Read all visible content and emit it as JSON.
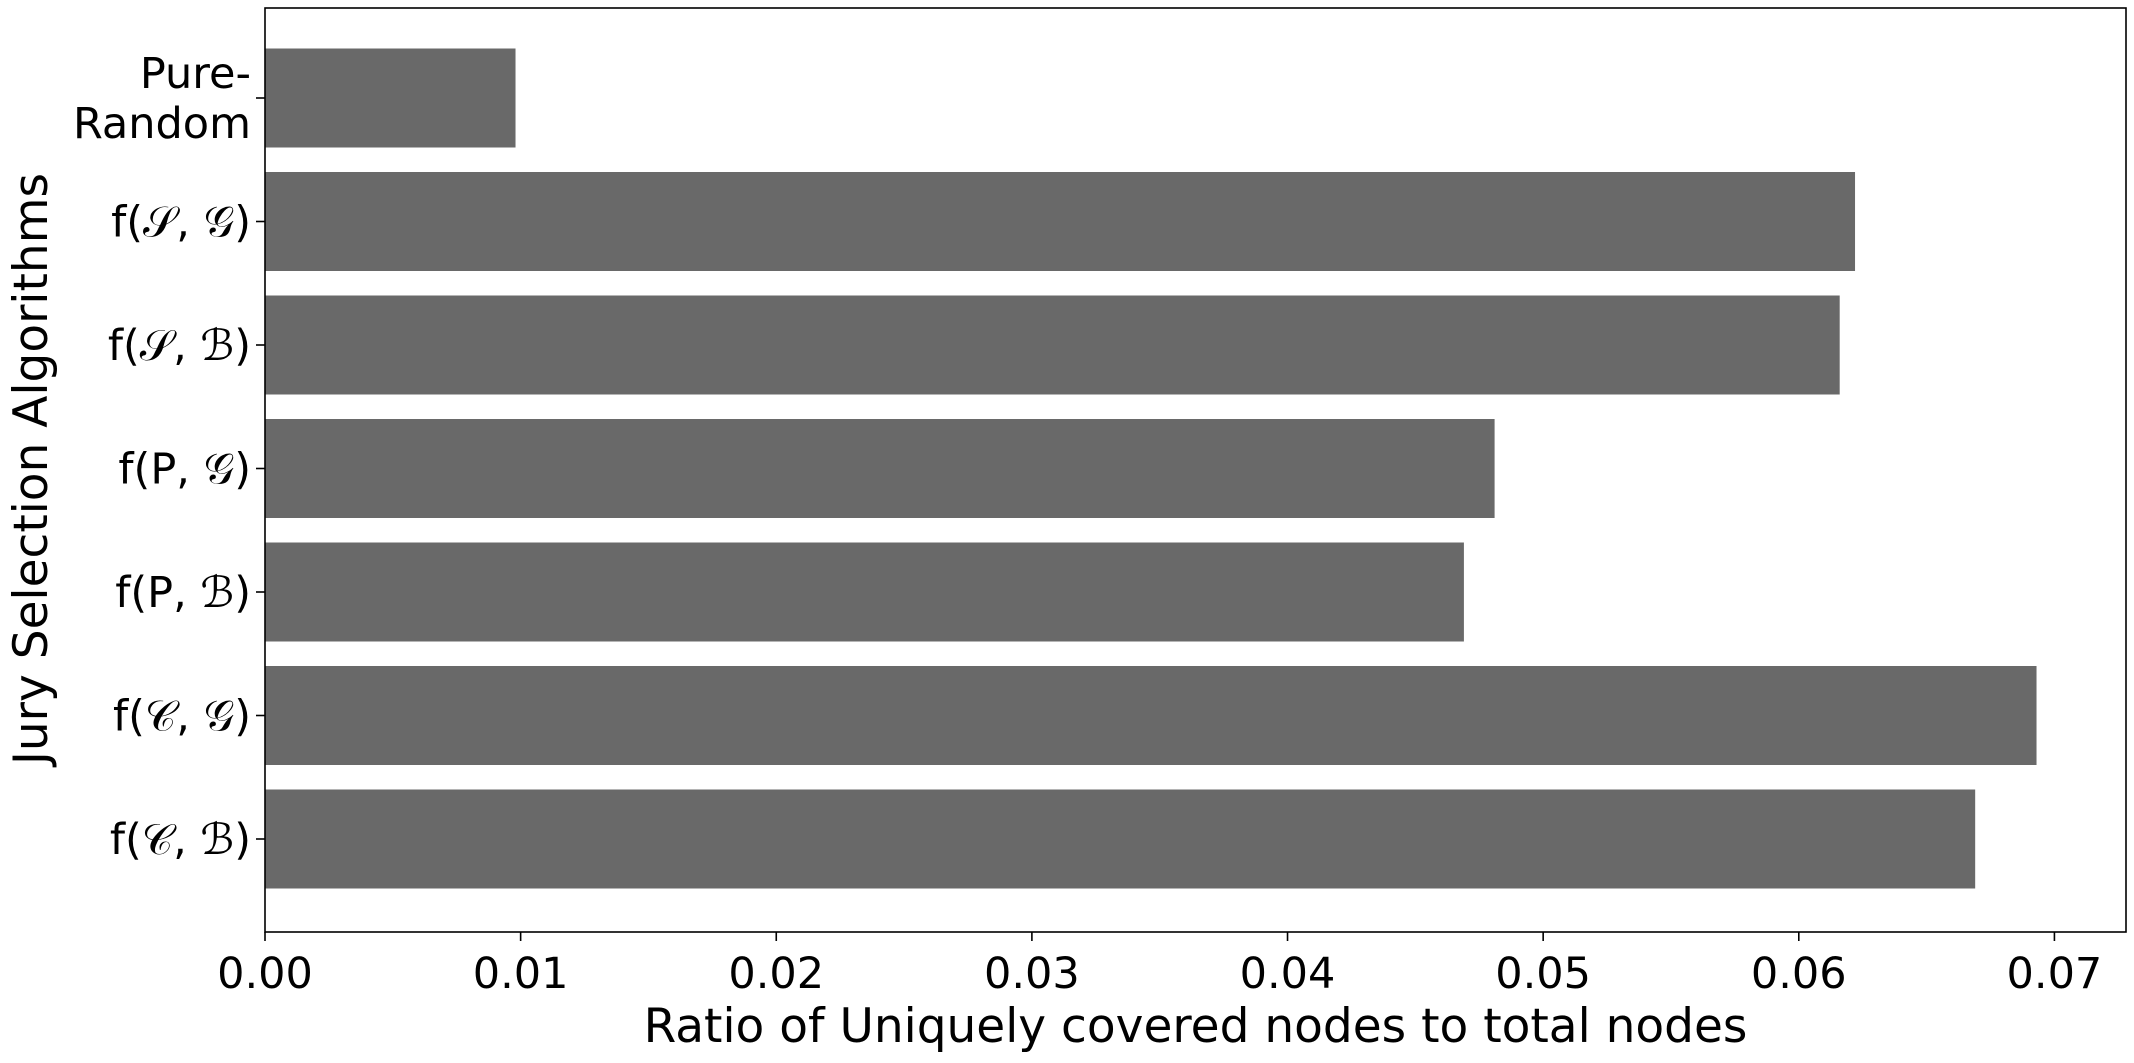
{
  "chart_data": {
    "type": "bar",
    "orientation": "horizontal",
    "title": "",
    "xlabel": "Ratio of Uniquely covered nodes to total nodes",
    "ylabel": "Jury Selection Algorithms",
    "xlim": [
      0,
      0.0728
    ],
    "xticks": [
      "0.00",
      "0.01",
      "0.02",
      "0.03",
      "0.04",
      "0.05",
      "0.06",
      "0.07"
    ],
    "categories": [
      "Pure-Random",
      "f(S, G)",
      "f(S, B)",
      "f(P, G)",
      "f(P, B)",
      "f(C, G)",
      "f(C, B)"
    ],
    "category_label_lines": [
      [
        "Pure-",
        "Random"
      ],
      [
        "f(𝒮, 𝒢)"
      ],
      [
        "f(𝒮, ℬ)"
      ],
      [
        "f(P, 𝒢)"
      ],
      [
        "f(P, ℬ)"
      ],
      [
        "f(𝒞, 𝒢)"
      ],
      [
        "f(𝒞, ℬ)"
      ]
    ],
    "values": [
      0.0098,
      0.0622,
      0.0616,
      0.0481,
      0.0469,
      0.0693,
      0.0669
    ],
    "bar_color": "#696969",
    "grid": false,
    "legend": "none"
  }
}
